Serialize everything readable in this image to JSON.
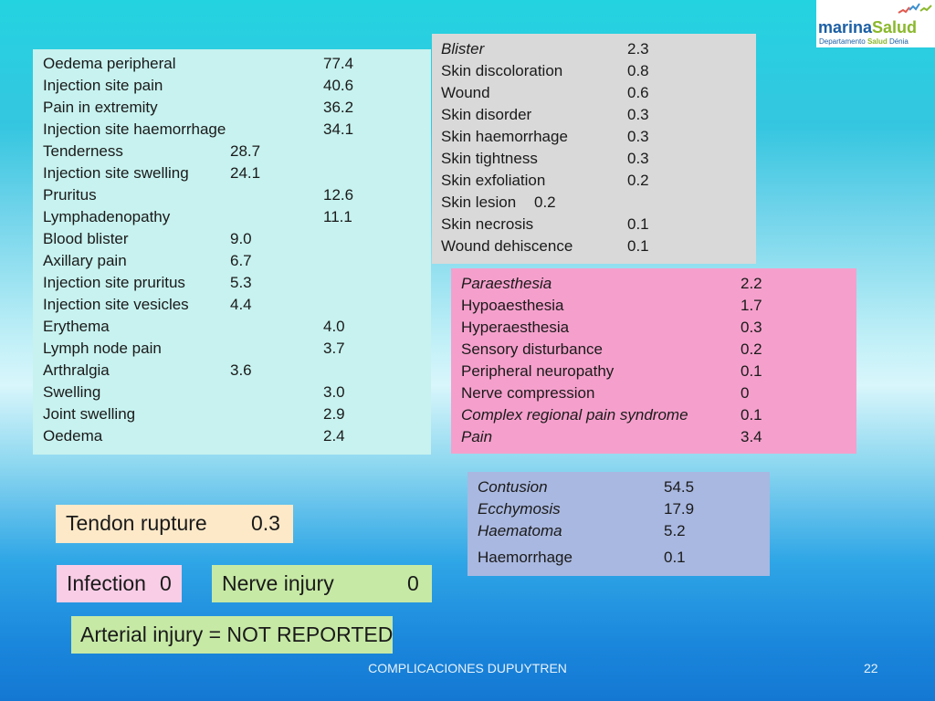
{
  "logo": {
    "brand_part1": "marina",
    "brand_part2": "Salud",
    "subtitle_part1": "Departamento",
    "subtitle_part2": "Salud",
    "subtitle_part3": "Dénia"
  },
  "local_reactions": [
    {
      "label": "Oedema peripheral",
      "value": "77.4"
    },
    {
      "label": "Injection site pain",
      "value": "40.6"
    },
    {
      "label": "Pain in extremity",
      "value": "36.2"
    },
    {
      "label": "Injection site haemorrhage",
      "value": "34.1"
    },
    {
      "label": "Tenderness",
      "value": "28.7"
    },
    {
      "label": "Injection site swelling",
      "value": "24.1"
    },
    {
      "label": "Pruritus",
      "value": "12.6"
    },
    {
      "label": "Lymphadenopathy",
      "value": "11.1"
    },
    {
      "label": "Blood blister",
      "value": "9.0"
    },
    {
      "label": "Axillary pain",
      "value": "6.7"
    },
    {
      "label": "Injection site pruritus",
      "value": "5.3"
    },
    {
      "label": "Injection site vesicles",
      "value": "4.4"
    },
    {
      "label": "Erythema",
      "value": "4.0"
    },
    {
      "label": "Lymph node pain",
      "value": "3.7"
    },
    {
      "label": "Arthralgia",
      "value": "3.6"
    },
    {
      "label": "Swelling",
      "value": "3.0"
    },
    {
      "label": "Joint swelling",
      "value": "2.9"
    },
    {
      "label": "Oedema",
      "value": "2.4"
    }
  ],
  "skin": [
    {
      "label": "Blister",
      "value": "2.3"
    },
    {
      "label": "Skin discoloration",
      "value": "0.8"
    },
    {
      "label": "Wound",
      "value": "0.6"
    },
    {
      "label": "Skin disorder",
      "value": "0.3"
    },
    {
      "label": "Skin haemorrhage",
      "value": "0.3"
    },
    {
      "label": "Skin tightness",
      "value": "0.3"
    },
    {
      "label": "Skin exfoliation",
      "value": "0.2"
    },
    {
      "label": "Skin lesion",
      "value": "0.2"
    },
    {
      "label": "Skin necrosis",
      "value": "0.1"
    },
    {
      "label": "Wound dehiscence",
      "value": "0.1"
    }
  ],
  "nerve": [
    {
      "label": "Paraesthesia",
      "value": "2.2"
    },
    {
      "label": "Hypoaesthesia",
      "value": "1.7"
    },
    {
      "label": "Hyperaesthesia",
      "value": "0.3"
    },
    {
      "label": "Sensory disturbance",
      "value": "0.2"
    },
    {
      "label": "Peripheral neuropathy",
      "value": "0.1"
    },
    {
      "label": "Nerve compression",
      "value": "0"
    },
    {
      "label": "Complex regional pain syndrome",
      "value": "0.1"
    },
    {
      "label": "Pain",
      "value": "3.4"
    }
  ],
  "bruising": [
    {
      "label": "Contusion",
      "value": "54.5"
    },
    {
      "label": "Ecchymosis",
      "value": "17.9"
    },
    {
      "label": "Haematoma",
      "value": "5.2"
    },
    {
      "label": "Haemorrhage",
      "value": "0.1"
    }
  ],
  "tendon": {
    "label": "Tendon rupture",
    "value": "0.3"
  },
  "infection": {
    "label": "Infection",
    "value": "0"
  },
  "nerve_injury": {
    "label": "Nerve injury",
    "value": "0"
  },
  "arterial": {
    "text": "Arterial injury = NOT REPORTED"
  },
  "footer": {
    "title": "COMPLICACIONES DUPUYTREN",
    "page": "22"
  },
  "colors": {
    "local": "#c7f2ef",
    "skin": "#d9d9d9",
    "nerve": "#f5a0cc",
    "bruising": "#a9b8e0",
    "tendon": "#fde9c8",
    "infection": "#f9cde6",
    "injury": "#c6e9a5"
  }
}
